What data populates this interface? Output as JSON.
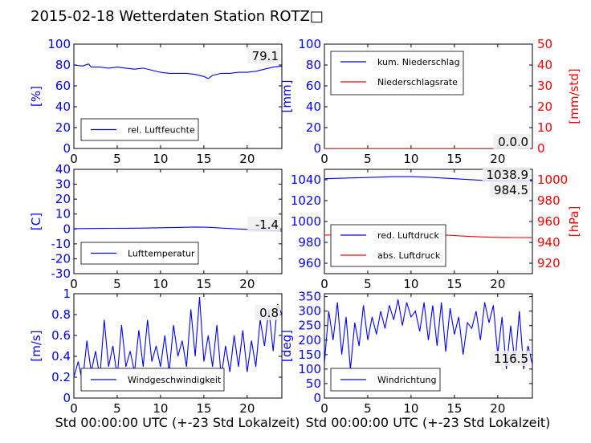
{
  "title": "2015-02-18 Wetterdaten Station ROTZ□",
  "xlabel": "Std 00:00:00 UTC (+-23 Std Lokalzeit)",
  "colors": {
    "left_axis": "#0000ff",
    "right_axis": "#ff0000",
    "series1": "#0000ff",
    "series2": "#ff0000"
  },
  "chart_data": [
    {
      "type": "line",
      "ylabel": "[%]",
      "xlim": [
        0,
        24
      ],
      "ylim": [
        0,
        100
      ],
      "xticks": [
        0,
        5,
        10,
        15,
        20
      ],
      "yticks": [
        0,
        20,
        40,
        60,
        80,
        100
      ],
      "x": [
        0,
        1,
        1.7,
        2,
        3,
        4,
        5,
        6,
        7,
        8,
        9,
        10,
        11,
        12,
        13,
        14,
        15,
        15.5,
        16,
        17,
        18,
        19,
        20,
        21,
        22,
        23,
        24
      ],
      "series": [
        {
          "name": "rel. Luftfeuchte",
          "values": [
            80,
            79,
            81,
            78,
            78,
            77,
            78,
            77,
            76,
            77,
            75,
            73,
            72,
            72,
            72,
            71,
            69,
            67,
            70,
            72,
            72,
            73,
            73,
            74,
            76,
            78,
            79
          ]
        }
      ],
      "annotation": "79.1",
      "legend": "lower-left"
    },
    {
      "type": "line",
      "ylabel": "[mm]",
      "y2label": "[mm/std]",
      "xlim": [
        0,
        24
      ],
      "ylim": [
        0,
        100
      ],
      "y2lim": [
        0,
        50
      ],
      "xticks": [
        0,
        5,
        10,
        15,
        20
      ],
      "yticks": [
        0,
        20,
        40,
        60,
        80,
        100
      ],
      "y2ticks": [
        0,
        10,
        20,
        30,
        40,
        50
      ],
      "x": [
        0,
        24
      ],
      "series": [
        {
          "name": "kum. Niederschlag",
          "values": [
            0,
            0
          ]
        },
        {
          "name": "Niederschlagsrate",
          "values": [
            0,
            0
          ]
        }
      ],
      "annotation": "0.0",
      "annotation2": "0.0",
      "legend": "top-left"
    },
    {
      "type": "line",
      "ylabel": "[C]",
      "xlim": [
        0,
        24
      ],
      "ylim": [
        -30,
        40
      ],
      "xticks": [
        0,
        5,
        10,
        15,
        20
      ],
      "yticks": [
        -30,
        -20,
        -10,
        0,
        10,
        20,
        30,
        40
      ],
      "x": [
        0,
        2,
        4,
        6,
        8,
        10,
        12,
        14,
        15,
        16,
        17,
        18,
        19,
        20,
        21,
        22,
        23,
        24
      ],
      "series": [
        {
          "name": "Lufttemperatur",
          "values": [
            0.2,
            0.3,
            0.4,
            0.5,
            0.6,
            0.8,
            1.0,
            1.3,
            1.2,
            1.0,
            0.6,
            0.3,
            0.0,
            -0.3,
            -0.6,
            -0.9,
            -1.2,
            -1.4
          ]
        }
      ],
      "annotation": "-1.4",
      "legend": "lower-left"
    },
    {
      "type": "line",
      "y2label": "[hPa]",
      "xlim": [
        0,
        24
      ],
      "ylim": [
        950,
        1050
      ],
      "y2lim": [
        910,
        1010
      ],
      "xticks": [
        0,
        5,
        10,
        15,
        20
      ],
      "yticks": [
        960,
        980,
        1000,
        1020,
        1040
      ],
      "y2ticks": [
        920,
        940,
        960,
        980,
        1000
      ],
      "x": [
        0,
        2,
        4,
        6,
        8,
        10,
        12,
        14,
        16,
        18,
        20,
        22,
        24
      ],
      "series": [
        {
          "name": "red. Luftdruck",
          "values": [
            1041.0,
            1041.5,
            1042.0,
            1042.5,
            1043.0,
            1043.0,
            1042.5,
            1041.5,
            1040.5,
            1039.5,
            1039.0,
            1039.0,
            1038.9
          ]
        },
        {
          "name": "abs. Luftdruck",
          "values": [
            987.0,
            987.3,
            987.8,
            988.3,
            988.7,
            988.6,
            988.0,
            987.0,
            986.0,
            985.2,
            984.8,
            984.6,
            984.5
          ]
        }
      ],
      "annotation": "1038.9",
      "annotation2": "984.5",
      "legend": "lower-left"
    },
    {
      "type": "line",
      "ylabel": "[m/s]",
      "xlim": [
        0,
        24
      ],
      "ylim": [
        0,
        1.0
      ],
      "xticks": [
        0,
        5,
        10,
        15,
        20
      ],
      "yticks": [
        0.0,
        0.2,
        0.4,
        0.6,
        0.8,
        1.0
      ],
      "x": [
        0,
        0.5,
        1,
        1.5,
        2,
        2.5,
        3,
        3.5,
        4,
        4.5,
        5,
        5.5,
        6,
        6.5,
        7,
        7.5,
        8,
        8.5,
        9,
        9.5,
        10,
        10.5,
        11,
        11.5,
        12,
        12.5,
        13,
        13.5,
        14,
        14.5,
        15,
        15.5,
        16,
        16.5,
        17,
        17.5,
        18,
        18.5,
        19,
        19.5,
        20,
        20.5,
        21,
        21.5,
        22,
        22.5,
        23,
        23.5,
        24
      ],
      "series": [
        {
          "name": "Windgeschwindigkeit",
          "values": [
            0.2,
            0.35,
            0.15,
            0.55,
            0.25,
            0.45,
            0.2,
            0.75,
            0.3,
            0.5,
            0.2,
            0.7,
            0.3,
            0.45,
            0.25,
            0.65,
            0.3,
            0.75,
            0.35,
            0.5,
            0.3,
            0.6,
            0.25,
            0.7,
            0.4,
            0.55,
            0.3,
            0.85,
            0.4,
            0.97,
            0.35,
            0.6,
            0.3,
            0.7,
            0.2,
            0.5,
            0.25,
            0.6,
            0.3,
            0.65,
            0.25,
            0.55,
            0.3,
            0.75,
            0.5,
            0.85,
            0.45,
            0.9,
            0.8
          ]
        }
      ],
      "annotation": "0.8",
      "legend": "lower-left"
    },
    {
      "type": "line",
      "ylabel": "[deg]",
      "xlim": [
        0,
        24
      ],
      "ylim": [
        0,
        360
      ],
      "xticks": [
        0,
        5,
        10,
        15,
        20
      ],
      "yticks": [
        0,
        50,
        100,
        150,
        200,
        250,
        300,
        350
      ],
      "x": [
        0,
        0.5,
        1,
        1.5,
        2,
        2.5,
        3,
        3.5,
        4,
        4.5,
        5,
        5.5,
        6,
        6.5,
        7,
        7.5,
        8,
        8.5,
        9,
        9.5,
        10,
        10.5,
        11,
        11.5,
        12,
        12.5,
        13,
        13.5,
        14,
        14.5,
        15,
        15.5,
        16,
        16.5,
        17,
        17.5,
        18,
        18.5,
        19,
        19.5,
        20,
        20.5,
        21,
        21.5,
        22,
        22.5,
        23,
        23.5,
        24
      ],
      "series": [
        {
          "name": "Windrichtung",
          "values": [
            120,
            300,
            200,
            330,
            150,
            280,
            100,
            260,
            180,
            320,
            200,
            280,
            220,
            300,
            240,
            320,
            270,
            340,
            250,
            330,
            280,
            300,
            230,
            330,
            200,
            320,
            180,
            330,
            160,
            310,
            220,
            280,
            150,
            260,
            240,
            300,
            200,
            330,
            260,
            320,
            150,
            280,
            100,
            250,
            120,
            300,
            100,
            180,
            116
          ]
        }
      ],
      "annotation": "116.5",
      "legend": "lower-left"
    }
  ]
}
